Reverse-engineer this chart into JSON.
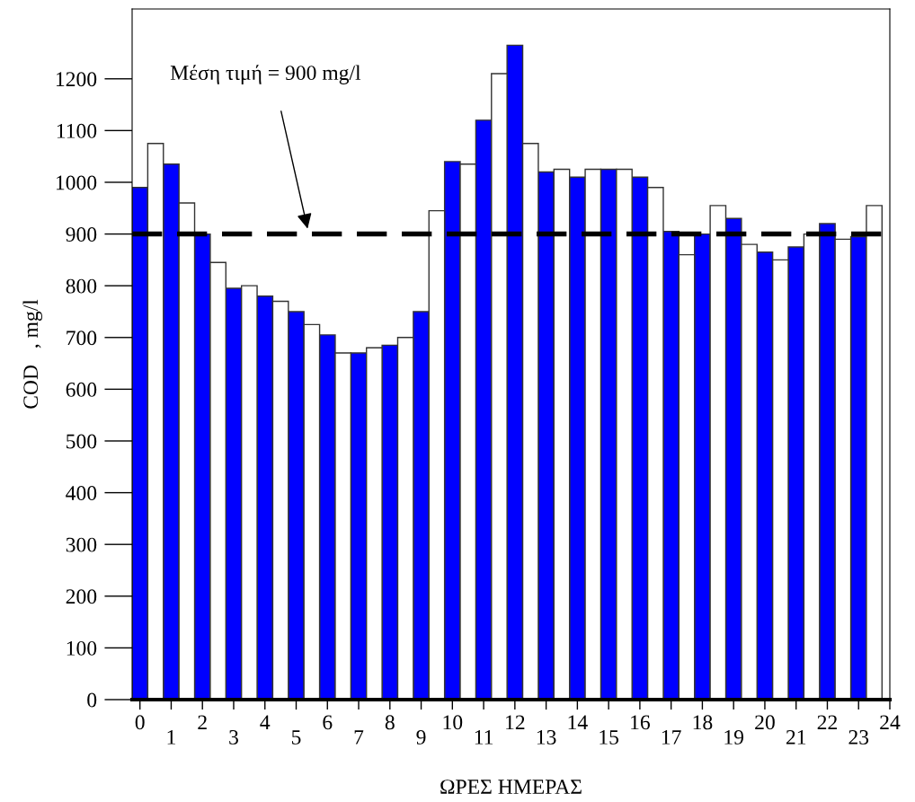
{
  "chart_data": {
    "type": "bar",
    "xlabel": "ΩΡΕΣ ΗΜΕΡΑΣ",
    "ylabel": "COD   , mg/l",
    "series": [
      {
        "color": "#0000ff",
        "x": [
          0,
          1,
          2,
          3,
          4,
          5,
          6,
          7,
          8,
          9,
          10,
          11,
          12,
          13,
          14,
          15,
          16,
          17,
          18,
          19,
          20,
          21,
          22,
          23
        ],
        "values": [
          990,
          1035,
          900,
          795,
          780,
          750,
          705,
          670,
          685,
          750,
          1040,
          1120,
          1265,
          1020,
          1010,
          1025,
          1010,
          905,
          900,
          930,
          865,
          875,
          920,
          895
        ]
      },
      {
        "color": "#ffffff",
        "x": [
          0.5,
          1.5,
          2.5,
          3.5,
          4.5,
          5.5,
          6.5,
          7.5,
          8.5,
          9.5,
          10.5,
          11.5,
          12.5,
          13.5,
          14.5,
          15.5,
          16.5,
          17.5,
          18.5,
          19.5,
          20.5,
          21.5,
          22.5,
          23.5
        ],
        "values": [
          1075,
          960,
          845,
          800,
          770,
          725,
          670,
          680,
          700,
          945,
          1035,
          1210,
          1075,
          1025,
          1025,
          1025,
          990,
          860,
          955,
          880,
          850,
          900,
          890,
          955
        ]
      }
    ],
    "xlim": [
      -0.25,
      24
    ],
    "xticks": [
      0,
      2,
      4,
      6,
      8,
      10,
      12,
      14,
      16,
      18,
      20,
      22,
      24
    ],
    "x2lim": [
      -0.25,
      24
    ],
    "x2ticks": [
      1,
      3,
      5,
      7,
      9,
      11,
      13,
      15,
      17,
      19,
      21,
      23
    ],
    "ylim": [
      0,
      1335
    ],
    "yticks": [
      0,
      100,
      200,
      300,
      400,
      500,
      600,
      700,
      800,
      900,
      1000,
      1100,
      1200
    ],
    "ref_lines": [
      {
        "axis": "y",
        "value": 900,
        "color": "#000000",
        "line_style": "dashed"
      }
    ],
    "annotations": [
      "Μέση τιμή = 900 mg/l"
    ],
    "grid": false,
    "legend": false
  }
}
